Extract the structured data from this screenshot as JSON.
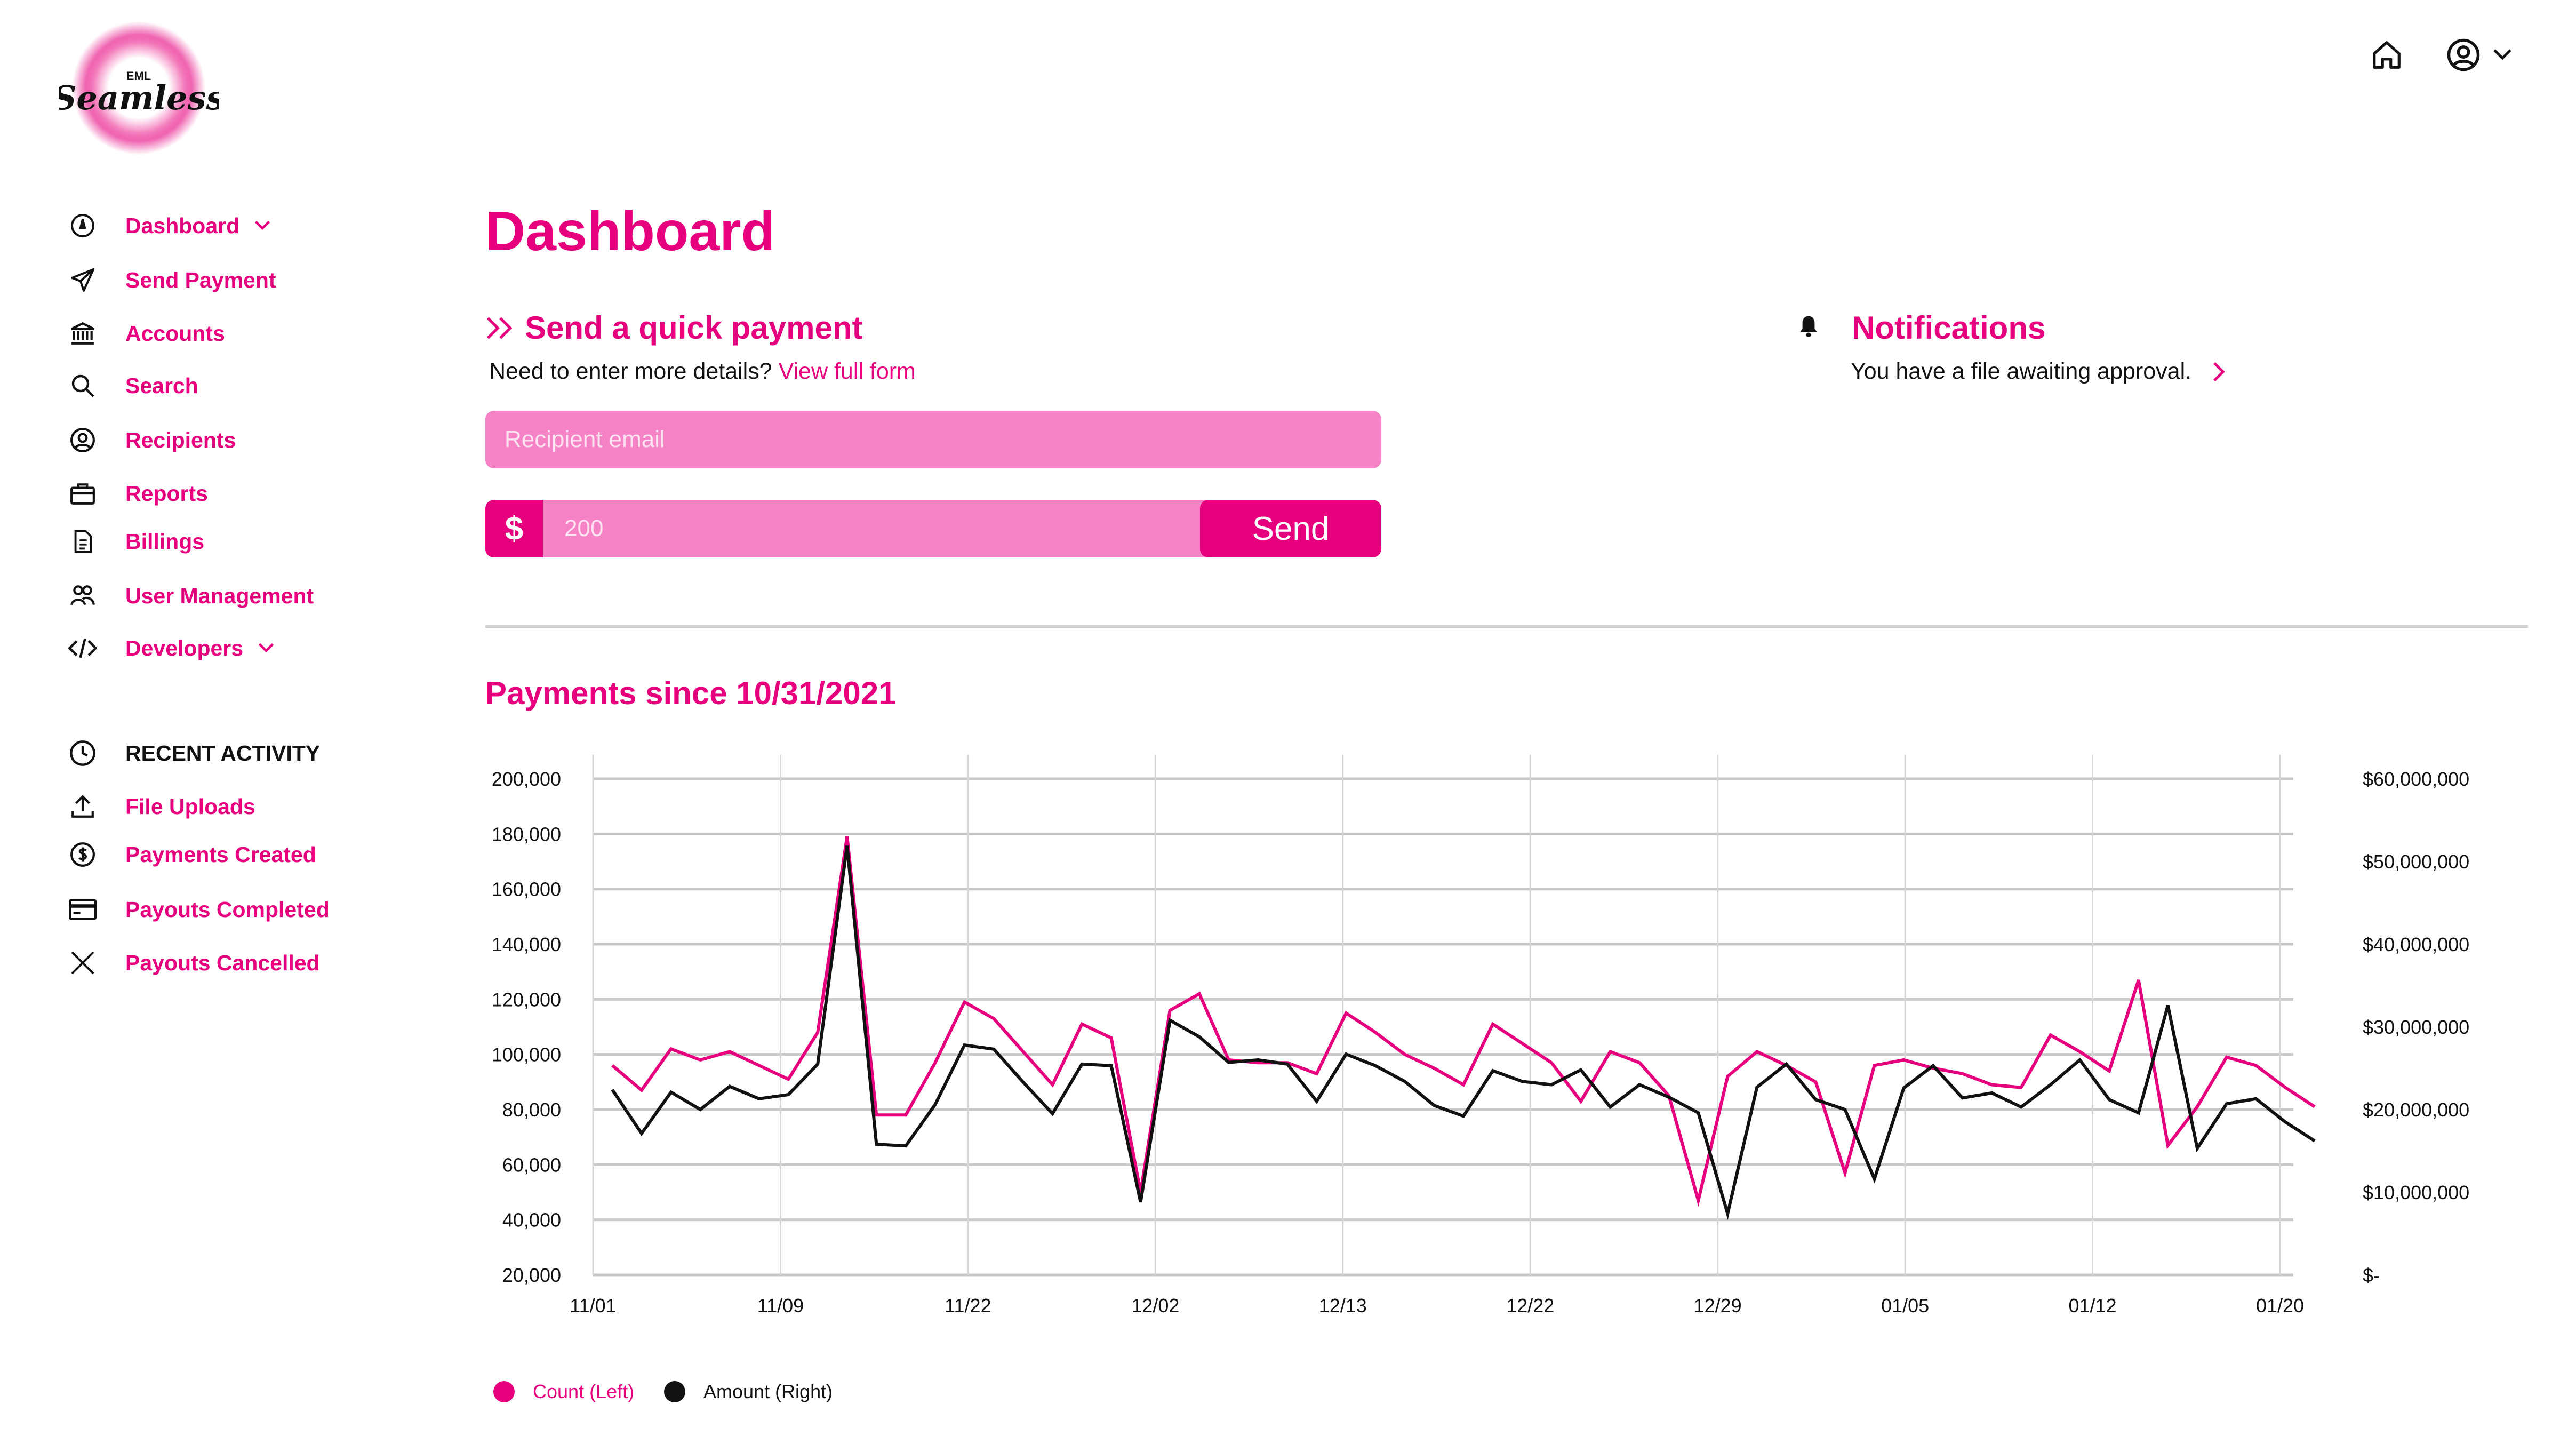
{
  "brand": {
    "logo_small": "EML",
    "logo_text": "Seamless",
    "accent": "#e6007e",
    "accent_light": "#f482c5"
  },
  "header": {
    "home_icon": "home-icon",
    "user_icon": "user-circle-icon"
  },
  "sidebar": {
    "items": [
      {
        "label": "Dashboard",
        "icon": "dashboard-icon",
        "has_chevron": true
      },
      {
        "label": "Send Payment",
        "icon": "send-icon"
      },
      {
        "label": "Accounts",
        "icon": "bank-icon"
      },
      {
        "label": "Search",
        "icon": "search-icon"
      },
      {
        "label": "Recipients",
        "icon": "user-circle-icon"
      },
      {
        "label": "Reports",
        "icon": "briefcase-icon"
      },
      {
        "label": "Billings",
        "icon": "document-icon"
      },
      {
        "label": "User Management",
        "icon": "users-icon"
      },
      {
        "label": "Developers",
        "icon": "code-icon",
        "has_chevron": true
      }
    ],
    "recent_title": "RECENT ACTIVITY",
    "recent_items": [
      {
        "label": "File Uploads",
        "icon": "upload-icon"
      },
      {
        "label": "Payments Created",
        "icon": "dollar-circle-icon"
      },
      {
        "label": "Payouts Completed",
        "icon": "card-icon"
      },
      {
        "label": "Payouts Cancelled",
        "icon": "close-icon"
      }
    ]
  },
  "main": {
    "title": "Dashboard",
    "quick_payment": {
      "title": "Send a quick payment",
      "subtitle": "Need to enter more details?",
      "link": "View full form",
      "recipient_placeholder": "Recipient email",
      "currency": "$",
      "amount_placeholder": "200",
      "send_label": "Send"
    },
    "notifications": {
      "title": "Notifications",
      "text": "You have a file awaiting approval."
    },
    "chart_title": "Payments since 10/31/2021"
  },
  "chart_data": {
    "type": "line",
    "x_ticks": [
      "11/01",
      "11/09",
      "11/22",
      "12/02",
      "12/13",
      "12/22",
      "12/29",
      "01/05",
      "01/12",
      "01/20"
    ],
    "y_left_ticks": [
      "200,000",
      "180,000",
      "160,000",
      "140,000",
      "120,000",
      "100,000",
      "80,000",
      "60,000",
      "40,000",
      "20,000"
    ],
    "y_right_ticks": [
      "$60,000,000",
      "$50,000,000",
      "$40,000,000",
      "$30,000,000",
      "$20,000,000",
      "$10,000,000",
      "$-"
    ],
    "ylim_left": [
      20000,
      200000
    ],
    "ylim_right": [
      0,
      60000000
    ],
    "grid": true,
    "legend_position": "bottom-left",
    "series": [
      {
        "name": "Count (Left)",
        "axis": "left",
        "color": "#e6007e",
        "values": [
          96000,
          87000,
          102000,
          98000,
          101000,
          96000,
          91000,
          108000,
          179000,
          78000,
          78000,
          97000,
          119000,
          113000,
          101000,
          89000,
          111000,
          106000,
          50000,
          116000,
          122000,
          98000,
          97000,
          97000,
          93000,
          115000,
          108000,
          100000,
          95000,
          89000,
          111000,
          104000,
          97000,
          83000,
          101000,
          97000,
          85000,
          47000,
          92000,
          101000,
          96000,
          90000,
          57000,
          96000,
          98000,
          95000,
          93000,
          89000,
          88000,
          107000,
          101000,
          94000,
          127000,
          67000,
          81000,
          99000,
          96000,
          88000,
          81000
        ]
      },
      {
        "name": "Amount (Right)",
        "axis": "right",
        "color": "#111111",
        "values": [
          22400000,
          17100000,
          22100000,
          20000000,
          22800000,
          21300000,
          21800000,
          25500000,
          51900000,
          15800000,
          15600000,
          20600000,
          27800000,
          27300000,
          23300000,
          19500000,
          25500000,
          25300000,
          8800000,
          30800000,
          28800000,
          25700000,
          26000000,
          25500000,
          21000000,
          26700000,
          25300000,
          23400000,
          20500000,
          19200000,
          24700000,
          23400000,
          23000000,
          24800000,
          20300000,
          23000000,
          21500000,
          19600000,
          7400000,
          22700000,
          25500000,
          21200000,
          20000000,
          11600000,
          22600000,
          25300000,
          21400000,
          22000000,
          20300000,
          23000000,
          26000000,
          21200000,
          19600000,
          32600000,
          15300000,
          20700000,
          21300000,
          18500000,
          16200000
        ]
      }
    ]
  }
}
